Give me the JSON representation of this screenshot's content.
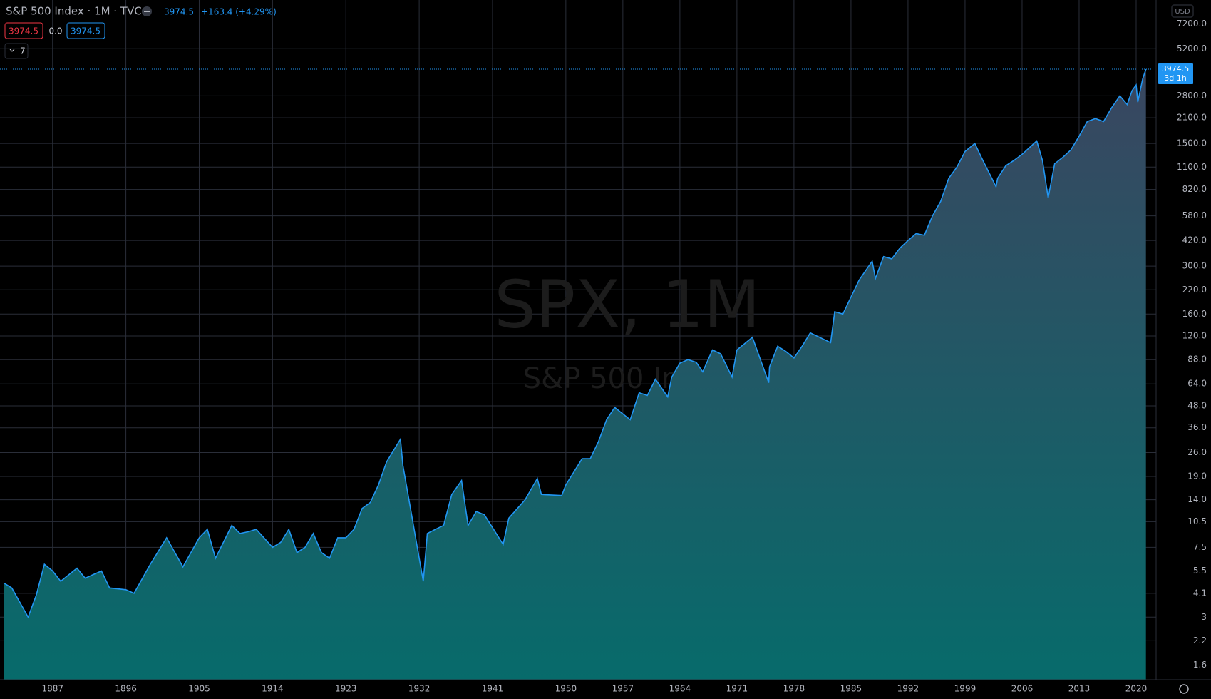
{
  "ui": {
    "symbol_line": "S&P 500 Index · 1M · TVC",
    "change": "+163.4 (+4.29%)",
    "zero": "0.0",
    "interval_count": "7",
    "watermark": "SPX, 1M",
    "watermark_name": "S&P 500 Index",
    "currency": "USD",
    "countdown": "3d 1h"
  },
  "chart_data": {
    "type": "area",
    "log": true,
    "grid": true,
    "color": "#2196f3",
    "x": [
      1881,
      1882,
      1884,
      1885,
      1886,
      1887,
      1888,
      1890,
      1891,
      1893,
      1894,
      1896,
      1897,
      1899,
      1901,
      1903,
      1905,
      1906,
      1907,
      1909,
      1910,
      1911,
      1912,
      1914,
      1915,
      1916,
      1917,
      1918,
      1919,
      1920,
      1921,
      1922,
      1923,
      1924,
      1925,
      1926,
      1927,
      1928,
      1929.7,
      1930,
      1931,
      1932.5,
      1933,
      1934,
      1935,
      1936,
      1937.2,
      1938,
      1939,
      1940,
      1942.3,
      1943,
      1945,
      1946.5,
      1947,
      1949.5,
      1950,
      1952,
      1953,
      1954,
      1955,
      1956,
      1957.9,
      1959,
      1960,
      1961,
      1962.5,
      1963,
      1964,
      1965,
      1966,
      1966.8,
      1968,
      1969,
      1970.4,
      1971,
      1972.9,
      1974.9,
      1975,
      1976,
      1977,
      1978,
      1979,
      1980,
      1982.5,
      1983,
      1984,
      1985,
      1986,
      1987.6,
      1988,
      1989,
      1990,
      1991,
      1992,
      1993,
      1994,
      1995,
      1996,
      1997,
      1998,
      1999,
      2000.2,
      2001,
      2002.8,
      2003,
      2004,
      2005,
      2006,
      2007.8,
      2008.5,
      2009.2,
      2010,
      2011,
      2012,
      2013,
      2014,
      2015,
      2016,
      2017,
      2018,
      2018.9,
      2019.5,
      2020.0,
      2020.2,
      2020.8,
      2021.2
    ],
    "values": [
      4.7,
      4.4,
      3.0,
      4.0,
      6.0,
      5.5,
      4.8,
      5.7,
      5.0,
      5.5,
      4.4,
      4.3,
      4.1,
      6.0,
      8.5,
      5.8,
      8.5,
      9.5,
      6.5,
      10.0,
      9.0,
      9.2,
      9.5,
      7.5,
      8.0,
      9.5,
      7.0,
      7.5,
      9.0,
      7.0,
      6.5,
      8.5,
      8.5,
      9.5,
      12.5,
      13.5,
      17.0,
      23.0,
      31.0,
      22.0,
      12.0,
      4.8,
      9.0,
      9.5,
      10.0,
      15.0,
      18.0,
      10.0,
      12.0,
      11.5,
      7.8,
      11.0,
      14.0,
      18.5,
      15.0,
      14.8,
      17.0,
      24.0,
      24.0,
      30.0,
      40.0,
      47.0,
      40.0,
      57.0,
      55.0,
      68.0,
      54.0,
      70.0,
      84.0,
      88.0,
      85.0,
      75,
      100,
      95,
      70,
      100,
      118,
      65,
      80,
      105,
      98,
      90,
      105,
      125,
      110,
      165,
      160,
      200,
      250,
      320,
      255,
      340,
      330,
      380,
      420,
      460,
      450,
      580,
      700,
      950,
      1100,
      1350,
      1500,
      1250,
      850,
      950,
      1120,
      1200,
      1300,
      1550,
      1200,
      735,
      1150,
      1250,
      1380,
      1650,
      2000,
      2080,
      2000,
      2400,
      2800,
      2500,
      3000,
      3230,
      2580,
      3500,
      3974.5
    ],
    "xlim": [
      1880.55,
      2022.45
    ],
    "xticks": [
      1887,
      1896,
      1905,
      1914,
      1923,
      1932,
      1941,
      1950,
      1957,
      1964,
      1971,
      1978,
      1985,
      1992,
      1999,
      2006,
      2013,
      2020
    ],
    "ylim": [
      1.32,
      9850
    ],
    "yticks": [
      1.6,
      2.2,
      3.0,
      4.1,
      5.5,
      7.5,
      {
        "value": 10.5,
        "label": "10.5"
      },
      {
        "value": 14,
        "label": "14.0"
      },
      {
        "value": 19,
        "label": "19.0"
      },
      {
        "value": 26,
        "label": "26.0"
      },
      {
        "value": 36,
        "label": "36.0"
      },
      {
        "value": 48,
        "label": "48.0"
      },
      {
        "value": 64,
        "label": "64.0"
      },
      {
        "value": 88,
        "label": "88.0"
      },
      {
        "value": 120,
        "label": "120.0"
      },
      {
        "value": 160,
        "label": "160.0"
      },
      {
        "value": 220,
        "label": "220.0"
      },
      {
        "value": 300,
        "label": "300.0"
      },
      {
        "value": 420,
        "label": "420.0"
      },
      {
        "value": 580,
        "label": "580.0"
      },
      {
        "value": 820,
        "label": "820.0"
      },
      {
        "value": 1100,
        "label": "1100.0"
      },
      {
        "value": 1500,
        "label": "1500.0"
      },
      {
        "value": 2100,
        "label": "2100.0"
      },
      {
        "value": 2800,
        "label": "2800.0"
      },
      {
        "value": 5200,
        "label": "5200.0"
      },
      {
        "value": 7200,
        "label": "7200.0"
      }
    ]
  }
}
